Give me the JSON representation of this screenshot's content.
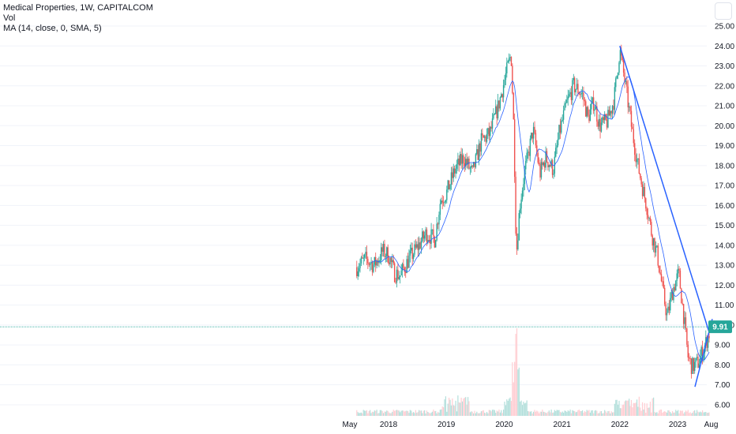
{
  "legend": {
    "symbol_line": "Medical Properties, 1W, CAPITALCOM",
    "volume_label": "Vol",
    "ma_label": "MA (14, close, 0, SMA, 5)"
  },
  "chart_data": {
    "type": "candlestick",
    "title": "Medical Properties, 1W, CAPITALCOM",
    "ylim": [
      5.5,
      25.5
    ],
    "y_ticks": [
      "25.00",
      "24.00",
      "23.00",
      "22.00",
      "21.00",
      "20.00",
      "19.00",
      "18.00",
      "17.00",
      "16.00",
      "15.00",
      "14.00",
      "13.00",
      "12.00",
      "11.00",
      "10.00",
      "9.00",
      "8.00",
      "7.00",
      "6.00"
    ],
    "x_ticks": [
      "May",
      "2018",
      "2019",
      "2020",
      "2021",
      "2022",
      "2023",
      "Aug"
    ],
    "last_price": "9.91",
    "price_path": [
      {
        "t": 2017.45,
        "v": 12.9
      },
      {
        "t": 2017.6,
        "v": 13.3
      },
      {
        "t": 2017.75,
        "v": 13.0
      },
      {
        "t": 2017.9,
        "v": 13.7
      },
      {
        "t": 2018.0,
        "v": 13.5
      },
      {
        "t": 2018.1,
        "v": 12.6
      },
      {
        "t": 2018.2,
        "v": 12.5
      },
      {
        "t": 2018.35,
        "v": 13.3
      },
      {
        "t": 2018.5,
        "v": 13.9
      },
      {
        "t": 2018.65,
        "v": 14.6
      },
      {
        "t": 2018.8,
        "v": 14.3
      },
      {
        "t": 2018.9,
        "v": 16.3
      },
      {
        "t": 2019.0,
        "v": 16.6
      },
      {
        "t": 2019.15,
        "v": 17.8
      },
      {
        "t": 2019.3,
        "v": 18.4
      },
      {
        "t": 2019.45,
        "v": 17.6
      },
      {
        "t": 2019.6,
        "v": 19.2
      },
      {
        "t": 2019.75,
        "v": 19.6
      },
      {
        "t": 2019.9,
        "v": 21.0
      },
      {
        "t": 2020.05,
        "v": 22.8
      },
      {
        "t": 2020.12,
        "v": 23.6
      },
      {
        "t": 2020.17,
        "v": 19.5
      },
      {
        "t": 2020.21,
        "v": 13.5
      },
      {
        "t": 2020.27,
        "v": 16.0
      },
      {
        "t": 2020.35,
        "v": 17.6
      },
      {
        "t": 2020.5,
        "v": 19.8
      },
      {
        "t": 2020.62,
        "v": 17.6
      },
      {
        "t": 2020.72,
        "v": 18.4
      },
      {
        "t": 2020.85,
        "v": 17.8
      },
      {
        "t": 2020.95,
        "v": 19.6
      },
      {
        "t": 2021.08,
        "v": 21.1
      },
      {
        "t": 2021.2,
        "v": 22.0
      },
      {
        "t": 2021.35,
        "v": 21.6
      },
      {
        "t": 2021.45,
        "v": 20.4
      },
      {
        "t": 2021.55,
        "v": 21.2
      },
      {
        "t": 2021.65,
        "v": 20.0
      },
      {
        "t": 2021.78,
        "v": 20.2
      },
      {
        "t": 2021.9,
        "v": 21.3
      },
      {
        "t": 2022.0,
        "v": 23.8
      },
      {
        "t": 2022.1,
        "v": 22.0
      },
      {
        "t": 2022.2,
        "v": 20.0
      },
      {
        "t": 2022.3,
        "v": 18.2
      },
      {
        "t": 2022.4,
        "v": 16.8
      },
      {
        "t": 2022.48,
        "v": 15.8
      },
      {
        "t": 2022.55,
        "v": 14.6
      },
      {
        "t": 2022.65,
        "v": 13.5
      },
      {
        "t": 2022.75,
        "v": 11.6
      },
      {
        "t": 2022.82,
        "v": 10.4
      },
      {
        "t": 2022.92,
        "v": 11.8
      },
      {
        "t": 2023.02,
        "v": 12.6
      },
      {
        "t": 2023.1,
        "v": 10.6
      },
      {
        "t": 2023.18,
        "v": 8.4
      },
      {
        "t": 2023.25,
        "v": 7.9
      },
      {
        "t": 2023.35,
        "v": 8.1
      },
      {
        "t": 2023.45,
        "v": 8.8
      },
      {
        "t": 2023.55,
        "v": 9.6
      }
    ],
    "trendlines": [
      {
        "from": {
          "t": 2022.0,
          "v": 24.0
        },
        "to": {
          "t": 2023.55,
          "v": 9.6
        }
      },
      {
        "from": {
          "t": 2023.3,
          "v": 6.9
        },
        "to": {
          "t": 2023.6,
          "v": 10.3
        }
      }
    ],
    "volume_spike_time": 2020.2,
    "colors": {
      "up": "#26a69a",
      "down": "#ef5350",
      "ma": "#2962ff",
      "trendline": "#2962ff",
      "last_price_line": "#26a69a",
      "grid": "#f0f3fa",
      "volume_up": "#b2dfdb",
      "volume_down": "#ffcdd2"
    }
  }
}
